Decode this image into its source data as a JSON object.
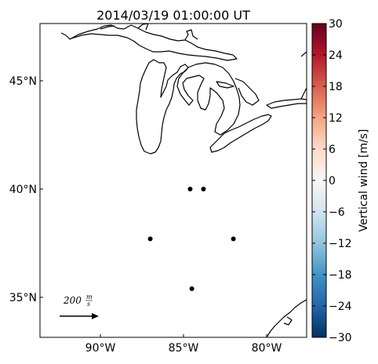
{
  "title": "2014/03/19 01:00:00 UT",
  "map": {
    "lat_ticks": [
      {
        "lat": 45,
        "label": "45°N"
      },
      {
        "lat": 40,
        "label": "40°N"
      },
      {
        "lat": 35,
        "label": "35°N"
      }
    ],
    "lon_ticks": [
      {
        "lon": -90,
        "label": "90°W"
      },
      {
        "lon": -85,
        "label": "85°W"
      },
      {
        "lon": -80,
        "label": "80°W"
      }
    ],
    "stations": [
      {
        "lon": -84.6,
        "lat": 40.0
      },
      {
        "lon": -83.8,
        "lat": 40.0
      },
      {
        "lon": -87.0,
        "lat": 37.7
      },
      {
        "lon": -82.0,
        "lat": 37.7
      },
      {
        "lon": -84.5,
        "lat": 35.4
      }
    ],
    "reference_vector": {
      "value": "200",
      "unit_num": "m",
      "unit_den": "s"
    },
    "coastline_color": "#000000"
  },
  "colorbar": {
    "label": "Vertical wind [m/s]",
    "min": -30,
    "max": 30,
    "ticks": [
      "30",
      "24",
      "18",
      "12",
      "6",
      "0",
      "−6",
      "−12",
      "−18",
      "−24",
      "−30"
    ],
    "colormap": "RdBu_r",
    "colors": [
      "#67001f",
      "#b2182b",
      "#d6604d",
      "#f4a582",
      "#fddbc7",
      "#f7f7f7",
      "#d1e5f0",
      "#92c5de",
      "#4393c3",
      "#2166ac",
      "#053061"
    ]
  }
}
